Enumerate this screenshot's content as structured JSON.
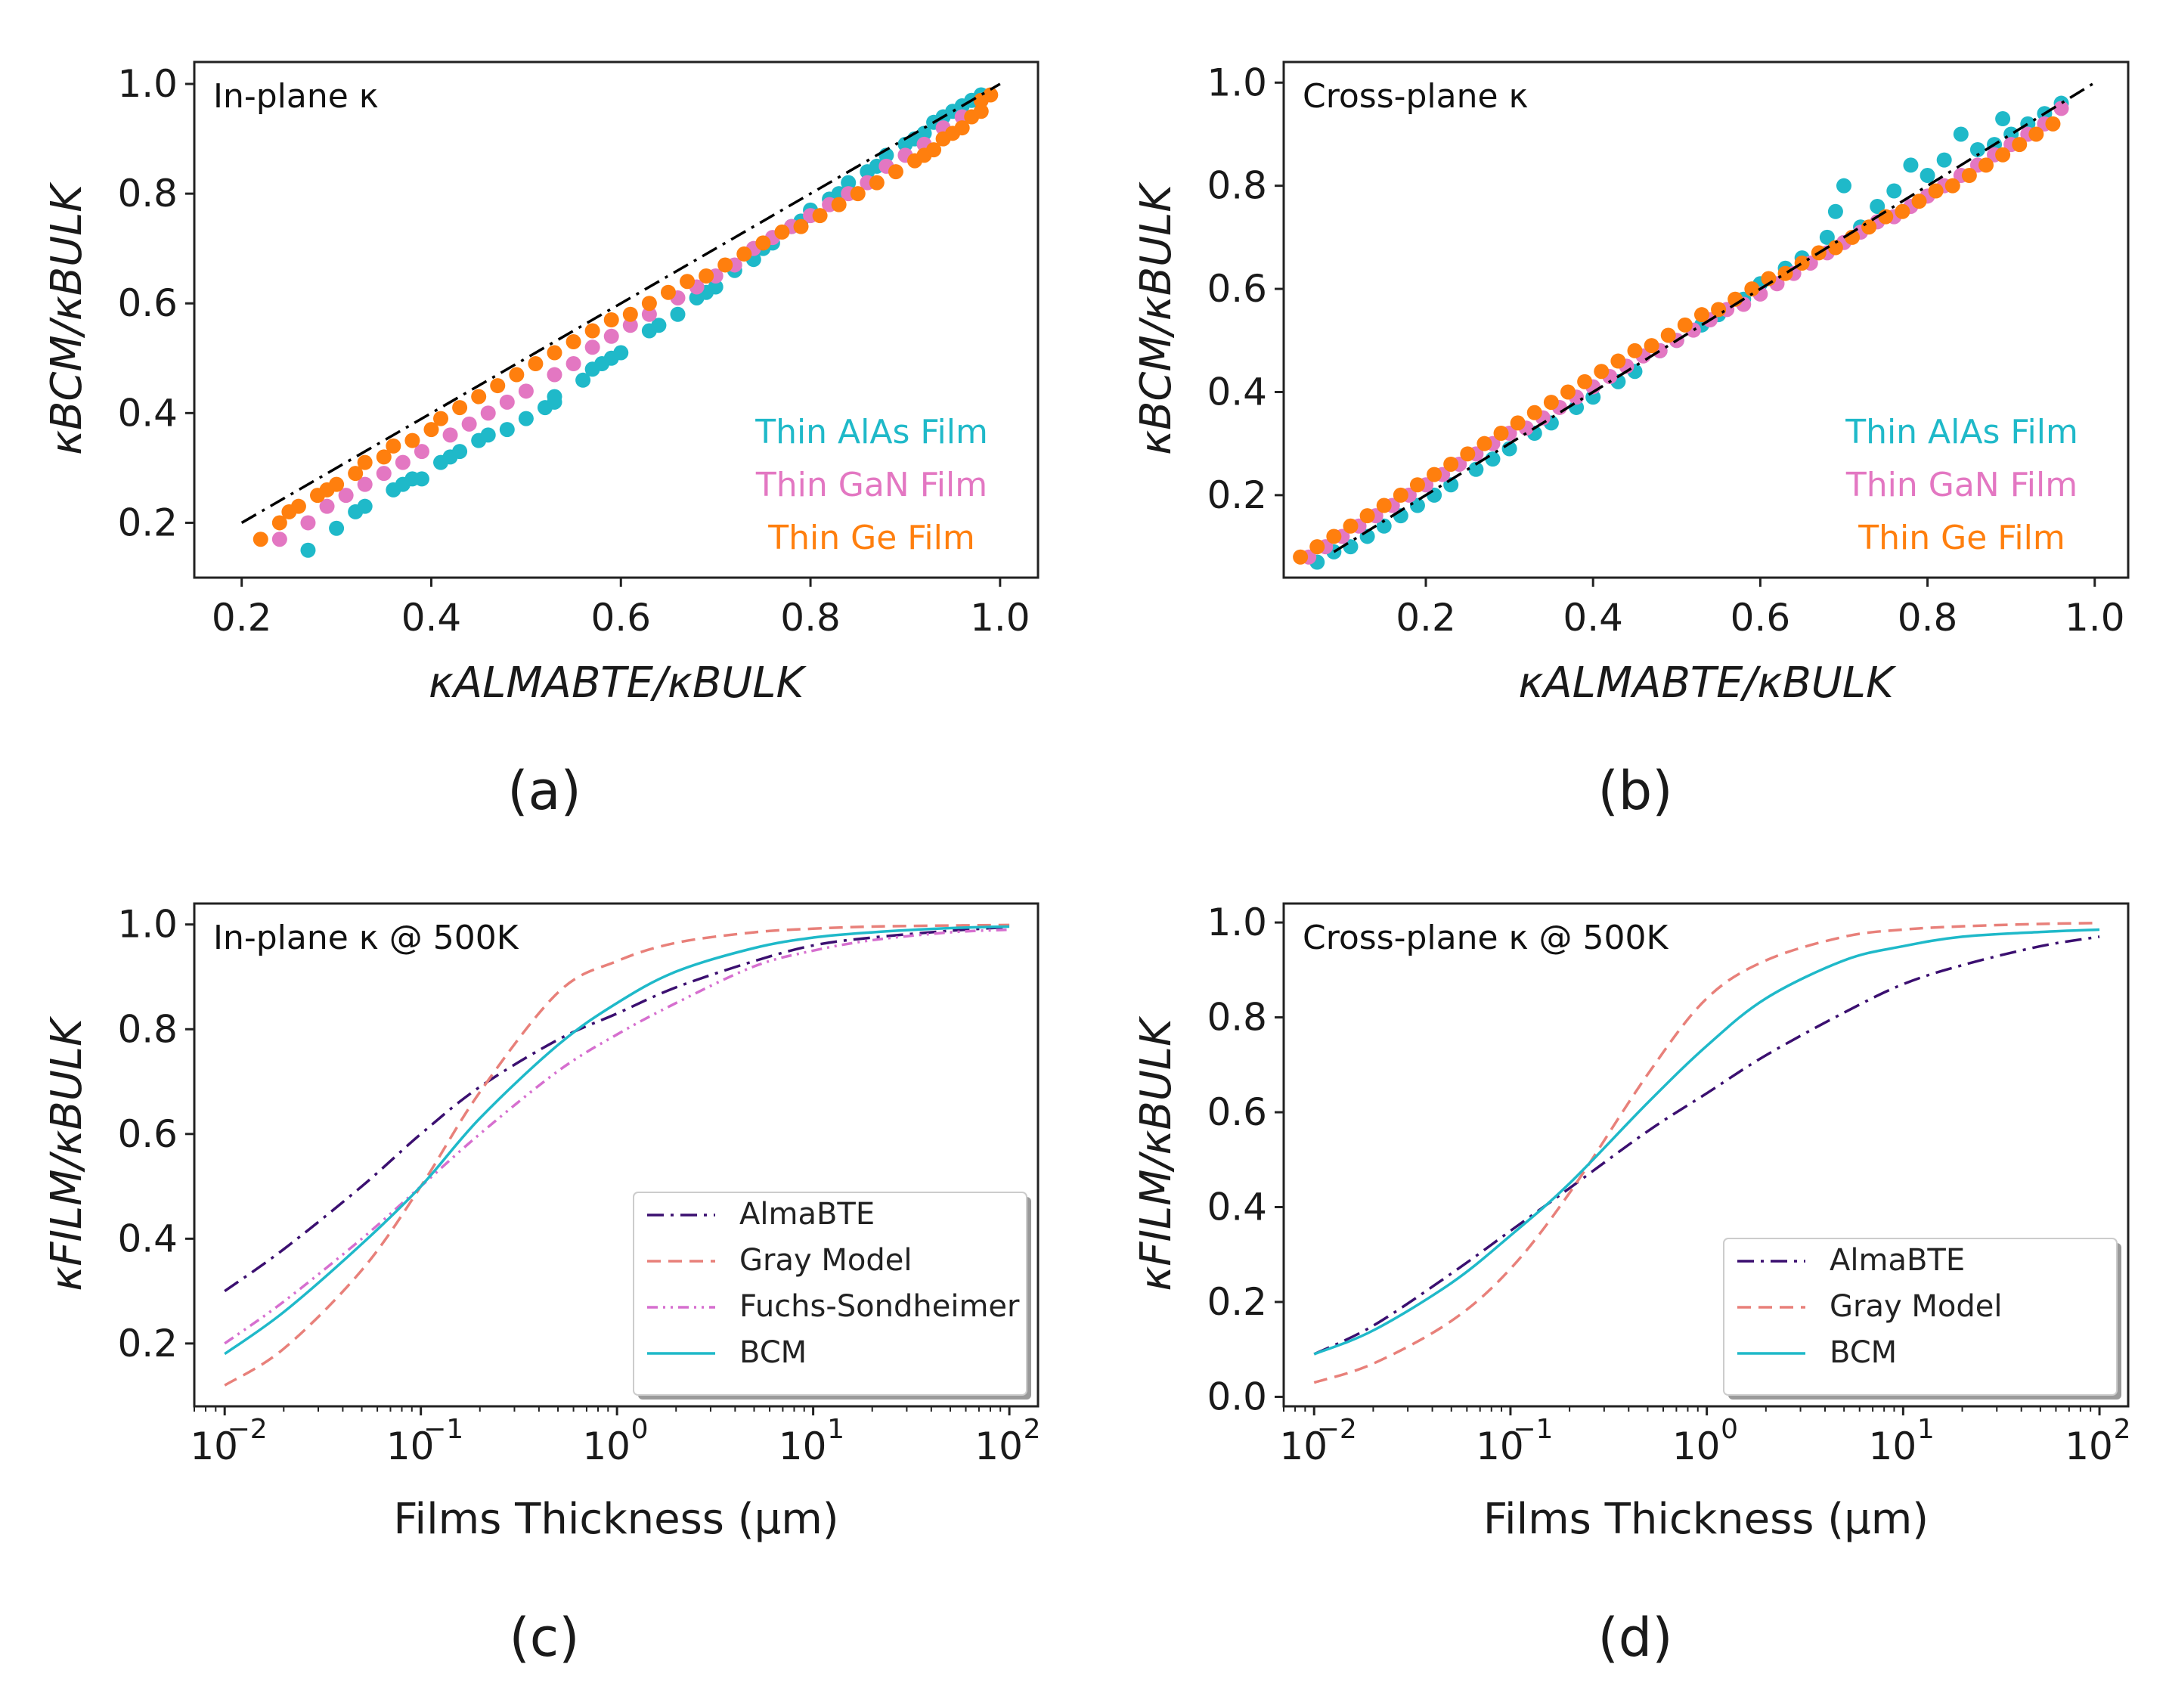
{
  "chart_data": [
    {
      "id": "a",
      "type": "scatter",
      "panel_label": "(a)",
      "title": "In-plane κ",
      "xlabel": "κALMABTE/κBULK",
      "ylabel": "κBCM/κBULK",
      "xlim": [
        0.15,
        1.04
      ],
      "ylim": [
        0.1,
        1.04
      ],
      "xticks": [
        0.2,
        0.4,
        0.6,
        0.8,
        1.0
      ],
      "xtick_labels": [
        "0.2",
        "0.4",
        "0.6",
        "0.8",
        "1.0"
      ],
      "yticks": [
        0.2,
        0.4,
        0.6,
        0.8,
        1.0
      ],
      "ytick_labels": [
        "0.2",
        "0.4",
        "0.6",
        "0.8",
        "1.0"
      ],
      "legend_position": "bottom-right",
      "reference_line": {
        "x": [
          0.2,
          1.0
        ],
        "y": [
          0.2,
          1.0
        ],
        "style": "dash-dot",
        "color": "#000000"
      },
      "series": [
        {
          "name": "Thin AlAs Film",
          "color": "#1fb9c9",
          "x": [
            0.27,
            0.3,
            0.32,
            0.33,
            0.36,
            0.37,
            0.38,
            0.39,
            0.41,
            0.42,
            0.43,
            0.45,
            0.46,
            0.48,
            0.5,
            0.52,
            0.53,
            0.53,
            0.56,
            0.57,
            0.58,
            0.59,
            0.6,
            0.63,
            0.64,
            0.66,
            0.68,
            0.69,
            0.7,
            0.72,
            0.74,
            0.75,
            0.76,
            0.78,
            0.79,
            0.8,
            0.82,
            0.83,
            0.84,
            0.86,
            0.87,
            0.88,
            0.9,
            0.91,
            0.92,
            0.93,
            0.94,
            0.95,
            0.96,
            0.97,
            0.98
          ],
          "y": [
            0.15,
            0.19,
            0.22,
            0.23,
            0.26,
            0.27,
            0.28,
            0.28,
            0.31,
            0.32,
            0.33,
            0.35,
            0.36,
            0.37,
            0.39,
            0.41,
            0.42,
            0.43,
            0.46,
            0.48,
            0.49,
            0.5,
            0.51,
            0.55,
            0.56,
            0.58,
            0.61,
            0.62,
            0.63,
            0.66,
            0.68,
            0.7,
            0.71,
            0.74,
            0.75,
            0.77,
            0.79,
            0.8,
            0.82,
            0.84,
            0.85,
            0.87,
            0.89,
            0.9,
            0.91,
            0.93,
            0.94,
            0.95,
            0.96,
            0.97,
            0.98
          ]
        },
        {
          "name": "Thin GaN Film",
          "color": "#e377c2",
          "x": [
            0.24,
            0.27,
            0.29,
            0.31,
            0.33,
            0.35,
            0.37,
            0.39,
            0.42,
            0.44,
            0.46,
            0.48,
            0.5,
            0.53,
            0.55,
            0.57,
            0.59,
            0.61,
            0.63,
            0.66,
            0.68,
            0.7,
            0.72,
            0.74,
            0.76,
            0.78,
            0.8,
            0.82,
            0.84,
            0.86,
            0.88,
            0.9,
            0.92,
            0.94,
            0.96,
            0.98
          ],
          "y": [
            0.17,
            0.2,
            0.23,
            0.25,
            0.27,
            0.29,
            0.31,
            0.33,
            0.36,
            0.38,
            0.4,
            0.42,
            0.44,
            0.47,
            0.49,
            0.52,
            0.54,
            0.56,
            0.58,
            0.61,
            0.63,
            0.65,
            0.67,
            0.7,
            0.72,
            0.74,
            0.76,
            0.78,
            0.8,
            0.82,
            0.85,
            0.87,
            0.89,
            0.92,
            0.94,
            0.97
          ]
        },
        {
          "name": "Thin Ge Film",
          "color": "#ff7f0e",
          "x": [
            0.22,
            0.24,
            0.25,
            0.26,
            0.28,
            0.29,
            0.3,
            0.32,
            0.33,
            0.35,
            0.36,
            0.38,
            0.4,
            0.41,
            0.43,
            0.45,
            0.47,
            0.49,
            0.51,
            0.53,
            0.55,
            0.57,
            0.59,
            0.61,
            0.63,
            0.65,
            0.67,
            0.69,
            0.71,
            0.73,
            0.75,
            0.77,
            0.79,
            0.81,
            0.83,
            0.85,
            0.87,
            0.89,
            0.91,
            0.92,
            0.93,
            0.94,
            0.95,
            0.96,
            0.97,
            0.98,
            0.98,
            0.99
          ],
          "y": [
            0.17,
            0.2,
            0.22,
            0.23,
            0.25,
            0.26,
            0.27,
            0.29,
            0.31,
            0.32,
            0.34,
            0.35,
            0.37,
            0.39,
            0.41,
            0.43,
            0.45,
            0.47,
            0.49,
            0.51,
            0.53,
            0.55,
            0.57,
            0.58,
            0.6,
            0.62,
            0.64,
            0.65,
            0.67,
            0.69,
            0.71,
            0.73,
            0.74,
            0.76,
            0.78,
            0.8,
            0.82,
            0.84,
            0.86,
            0.87,
            0.88,
            0.9,
            0.91,
            0.92,
            0.94,
            0.95,
            0.97,
            0.98
          ]
        }
      ]
    },
    {
      "id": "b",
      "type": "scatter",
      "panel_label": "(b)",
      "title": "Cross-plane κ",
      "xlabel": "κALMABTE/κBULK",
      "ylabel": "κBCM/κBULK",
      "xlim": [
        0.03,
        1.04
      ],
      "ylim": [
        0.04,
        1.04
      ],
      "xticks": [
        0.2,
        0.4,
        0.6,
        0.8,
        1.0
      ],
      "xtick_labels": [
        "0.2",
        "0.4",
        "0.6",
        "0.8",
        "1.0"
      ],
      "yticks": [
        0.2,
        0.4,
        0.6,
        0.8,
        1.0
      ],
      "ytick_labels": [
        "0.2",
        "0.4",
        "0.6",
        "0.8",
        "1.0"
      ],
      "legend_position": "bottom-right",
      "reference_line": {
        "x": [
          0.09,
          1.0
        ],
        "y": [
          0.09,
          1.0
        ],
        "style": "dash-dot",
        "color": "#000000"
      },
      "series": [
        {
          "name": "Thin AlAs Film",
          "color": "#1fb9c9",
          "x": [
            0.07,
            0.09,
            0.11,
            0.13,
            0.15,
            0.17,
            0.19,
            0.21,
            0.23,
            0.26,
            0.28,
            0.3,
            0.33,
            0.35,
            0.38,
            0.4,
            0.43,
            0.45,
            0.48,
            0.5,
            0.53,
            0.55,
            0.58,
            0.6,
            0.63,
            0.65,
            0.68,
            0.69,
            0.7,
            0.72,
            0.74,
            0.76,
            0.78,
            0.8,
            0.82,
            0.84,
            0.86,
            0.88,
            0.89,
            0.9,
            0.92,
            0.94,
            0.96
          ],
          "y": [
            0.07,
            0.09,
            0.1,
            0.12,
            0.14,
            0.16,
            0.18,
            0.2,
            0.22,
            0.25,
            0.27,
            0.29,
            0.32,
            0.34,
            0.37,
            0.39,
            0.42,
            0.44,
            0.48,
            0.5,
            0.53,
            0.55,
            0.58,
            0.61,
            0.64,
            0.66,
            0.7,
            0.75,
            0.8,
            0.72,
            0.76,
            0.79,
            0.84,
            0.82,
            0.85,
            0.9,
            0.87,
            0.88,
            0.93,
            0.9,
            0.92,
            0.94,
            0.96
          ]
        },
        {
          "name": "Thin GaN Film",
          "color": "#e377c2",
          "x": [
            0.06,
            0.08,
            0.1,
            0.12,
            0.14,
            0.16,
            0.18,
            0.2,
            0.22,
            0.24,
            0.26,
            0.28,
            0.3,
            0.32,
            0.34,
            0.36,
            0.38,
            0.4,
            0.42,
            0.44,
            0.46,
            0.48,
            0.5,
            0.52,
            0.54,
            0.56,
            0.58,
            0.6,
            0.62,
            0.64,
            0.66,
            0.68,
            0.7,
            0.72,
            0.74,
            0.76,
            0.78,
            0.8,
            0.82,
            0.84,
            0.86,
            0.88,
            0.9,
            0.92,
            0.94,
            0.96
          ],
          "y": [
            0.08,
            0.1,
            0.12,
            0.14,
            0.16,
            0.18,
            0.2,
            0.22,
            0.24,
            0.26,
            0.28,
            0.3,
            0.32,
            0.33,
            0.35,
            0.37,
            0.39,
            0.41,
            0.43,
            0.45,
            0.47,
            0.48,
            0.5,
            0.52,
            0.54,
            0.56,
            0.57,
            0.59,
            0.61,
            0.63,
            0.65,
            0.67,
            0.69,
            0.71,
            0.73,
            0.74,
            0.76,
            0.78,
            0.8,
            0.82,
            0.84,
            0.86,
            0.88,
            0.9,
            0.92,
            0.95
          ]
        },
        {
          "name": "Thin Ge Film",
          "color": "#ff7f0e",
          "x": [
            0.05,
            0.07,
            0.09,
            0.11,
            0.13,
            0.15,
            0.17,
            0.19,
            0.21,
            0.23,
            0.25,
            0.27,
            0.29,
            0.31,
            0.33,
            0.35,
            0.37,
            0.39,
            0.41,
            0.43,
            0.45,
            0.47,
            0.49,
            0.51,
            0.53,
            0.55,
            0.57,
            0.59,
            0.61,
            0.63,
            0.65,
            0.67,
            0.69,
            0.71,
            0.73,
            0.75,
            0.77,
            0.79,
            0.81,
            0.83,
            0.85,
            0.87,
            0.89,
            0.91,
            0.93,
            0.95
          ],
          "y": [
            0.08,
            0.1,
            0.12,
            0.14,
            0.16,
            0.18,
            0.2,
            0.22,
            0.24,
            0.26,
            0.28,
            0.3,
            0.32,
            0.34,
            0.36,
            0.38,
            0.4,
            0.42,
            0.44,
            0.46,
            0.48,
            0.49,
            0.51,
            0.53,
            0.55,
            0.56,
            0.58,
            0.6,
            0.62,
            0.63,
            0.65,
            0.67,
            0.68,
            0.7,
            0.72,
            0.74,
            0.75,
            0.77,
            0.79,
            0.8,
            0.82,
            0.84,
            0.86,
            0.88,
            0.9,
            0.92
          ]
        }
      ]
    },
    {
      "id": "c",
      "type": "line",
      "panel_label": "(c)",
      "title": "In-plane κ @ 500K",
      "xlabel": "Films Thickness (μm)",
      "ylabel": "κFILM/κBULK",
      "xscale": "log",
      "xlim": [
        0.007,
        140
      ],
      "ylim": [
        0.08,
        1.04
      ],
      "xticks": [
        0.01,
        0.1,
        1,
        10,
        100
      ],
      "xtick_labels": [
        "10",
        "10",
        "10",
        "10",
        "10"
      ],
      "xtick_exponents": [
        "−2",
        "−1",
        "0",
        "1",
        "2"
      ],
      "yticks": [
        0.2,
        0.4,
        0.6,
        0.8,
        1.0
      ],
      "ytick_labels": [
        "0.2",
        "0.4",
        "0.6",
        "0.8",
        "1.0"
      ],
      "legend_position": "lower-right",
      "x": [
        0.01,
        0.02,
        0.05,
        0.1,
        0.2,
        0.5,
        1,
        2,
        5,
        10,
        20,
        50,
        100
      ],
      "series": [
        {
          "name": "AlmaBTE",
          "color": "#3b0f70",
          "style": "dash-dot",
          "values": [
            0.3,
            0.38,
            0.5,
            0.6,
            0.69,
            0.78,
            0.83,
            0.88,
            0.93,
            0.96,
            0.975,
            0.988,
            0.995
          ]
        },
        {
          "name": "Gray Model",
          "color": "#e8807a",
          "style": "dashed",
          "values": [
            0.12,
            0.19,
            0.34,
            0.5,
            0.68,
            0.87,
            0.93,
            0.965,
            0.985,
            0.992,
            0.996,
            0.998,
            0.999
          ]
        },
        {
          "name": "Fuchs-Sondheimer",
          "color": "#d66fcf",
          "style": "dash-dot-dot",
          "values": [
            0.2,
            0.28,
            0.4,
            0.5,
            0.6,
            0.72,
            0.79,
            0.85,
            0.92,
            0.95,
            0.97,
            0.985,
            0.99
          ]
        },
        {
          "name": "BCM",
          "color": "#1fb9c9",
          "style": "solid",
          "values": [
            0.18,
            0.26,
            0.39,
            0.5,
            0.63,
            0.77,
            0.85,
            0.91,
            0.955,
            0.975,
            0.985,
            0.993,
            0.996
          ]
        }
      ]
    },
    {
      "id": "d",
      "type": "line",
      "panel_label": "(d)",
      "title": "Cross-plane κ @ 500K",
      "xlabel": "Films Thickness (μm)",
      "ylabel": "κFILM/κBULK",
      "xscale": "log",
      "xlim": [
        0.007,
        140
      ],
      "ylim": [
        -0.02,
        1.04
      ],
      "xticks": [
        0.01,
        0.1,
        1,
        10,
        100
      ],
      "xtick_labels": [
        "10",
        "10",
        "10",
        "10",
        "10"
      ],
      "xtick_exponents": [
        "−2",
        "−1",
        "0",
        "1",
        "2"
      ],
      "yticks": [
        0.0,
        0.2,
        0.4,
        0.6,
        0.8,
        1.0
      ],
      "ytick_labels": [
        "0.0",
        "0.2",
        "0.4",
        "0.6",
        "0.8",
        "1.0"
      ],
      "legend_position": "lower-right",
      "x": [
        0.01,
        0.02,
        0.05,
        0.1,
        0.2,
        0.5,
        1,
        2,
        5,
        10,
        20,
        50,
        100
      ],
      "series": [
        {
          "name": "AlmaBTE",
          "color": "#3b0f70",
          "style": "dash-dot",
          "values": [
            0.09,
            0.15,
            0.26,
            0.35,
            0.44,
            0.56,
            0.64,
            0.72,
            0.81,
            0.87,
            0.91,
            0.95,
            0.97
          ]
        },
        {
          "name": "Gray Model",
          "color": "#e8807a",
          "style": "dashed",
          "values": [
            0.03,
            0.07,
            0.16,
            0.27,
            0.43,
            0.68,
            0.84,
            0.92,
            0.97,
            0.985,
            0.992,
            0.997,
            0.999
          ]
        },
        {
          "name": "BCM",
          "color": "#1fb9c9",
          "style": "solid",
          "values": [
            0.09,
            0.14,
            0.24,
            0.34,
            0.45,
            0.62,
            0.74,
            0.84,
            0.92,
            0.95,
            0.97,
            0.98,
            0.985
          ]
        }
      ]
    }
  ]
}
